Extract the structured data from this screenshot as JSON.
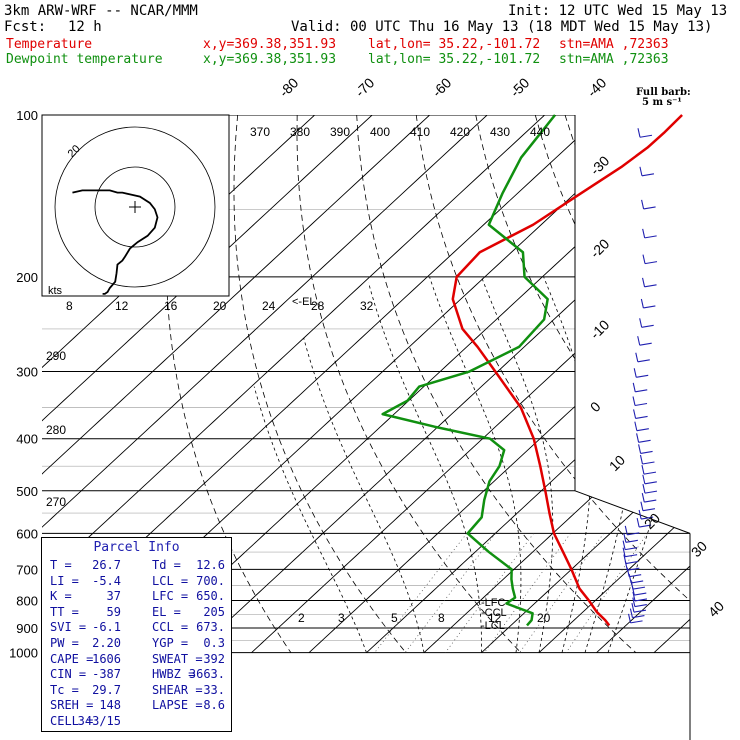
{
  "header": {
    "model": "3km ARW-WRF -- NCAR/MMM",
    "init": "Init: 12 UTC Wed 15 May 13",
    "fcst_label": "Fcst:",
    "fcst_value": "12 h",
    "valid": "Valid: 00 UTC Thu 16 May 13 (18 MDT Wed 15 May 13)",
    "temp_line": {
      "name": "Temperature",
      "xy": "x,y=369.38,351.93",
      "latlon": "lat,lon= 35.22,-101.72",
      "stn": "stn=AMA ,72363"
    },
    "dew_line": {
      "name": "Dewpoint temperature",
      "xy": "x,y=369.38,351.93",
      "latlon": "lat,lon= 35.22,-101.72",
      "stn": "stn=AMA ,72363"
    }
  },
  "colors": {
    "temperature": "#e00000",
    "dewpoint": "#109010",
    "wind_barbs": "#2020b0",
    "grid": "#000000"
  },
  "barb_legend": {
    "line1": "Full barb:",
    "line2": "5 m s⁻¹"
  },
  "parcel_info": {
    "title": "Parcel Info",
    "rows": [
      {
        "l1": "T",
        "v1": "26.7",
        "l2": "Td",
        "v2": "12.6"
      },
      {
        "l1": "LI",
        "v1": "-5.4",
        "l2": "LCL",
        "v2": "700."
      },
      {
        "l1": "K",
        "v1": "37",
        "l2": "LFC",
        "v2": "650."
      },
      {
        "l1": "TT",
        "v1": "59",
        "l2": "EL",
        "v2": "205"
      },
      {
        "l1": "SVI",
        "v1": "-6.1",
        "l2": "CCL",
        "v2": "673."
      },
      {
        "l1": "PW",
        "v1": "2.20",
        "l2": "YGP",
        "v2": "0.3"
      },
      {
        "l1": "CAPE",
        "v1": "1606",
        "l2": "SWEAT",
        "v2": "392"
      },
      {
        "l1": "CIN",
        "v1": "-387",
        "l2": "HWBZ",
        "v2": "3663."
      },
      {
        "l1": "Tc",
        "v1": "29.7",
        "l2": "SHEAR",
        "v2": "33."
      },
      {
        "l1": "SREH",
        "v1": "148",
        "l2": "LAPSE",
        "v2": "8.6"
      },
      {
        "l1": "CELL",
        "v1": "343/15",
        "l2": "",
        "v2": ""
      }
    ]
  },
  "level_markers": {
    "lfc": "-LFC",
    "lcl1": "-CCL",
    "lcl2": "-LCL",
    "el": "<-EL"
  },
  "hodograph": {
    "unit_label": "kts",
    "ring_label": "20",
    "speed_ticks": [
      "8",
      "12",
      "16",
      "20",
      "24",
      "28",
      "32"
    ]
  },
  "chart_data": {
    "type": "line",
    "title": "",
    "pressure_levels": [
      100,
      200,
      300,
      400,
      500,
      600,
      700,
      800,
      900,
      1000
    ],
    "isotherm_labels": [
      "-80",
      "-70",
      "-60",
      "-50",
      "-40",
      "-30",
      "-20",
      "-10",
      "0",
      "10",
      "20",
      "30",
      "40"
    ],
    "theta_labels": [
      "370",
      "380",
      "390",
      "400",
      "410",
      "420",
      "430",
      "440"
    ],
    "theta_low_labels": [
      "290",
      "280",
      "270"
    ],
    "mixing_ratio_labels": [
      "2",
      "3",
      "5",
      "8",
      "12",
      "20"
    ],
    "series": [
      {
        "name": "Temperature",
        "p": [
          890,
          870,
          840,
          800,
          760,
          700,
          650,
          600,
          550,
          500,
          450,
          400,
          350,
          300,
          270,
          250,
          220,
          200,
          180,
          160,
          140,
          125,
          115,
          108,
          100
        ],
        "t": [
          27.1,
          25.4,
          22.4,
          18.9,
          15.0,
          10.0,
          5.3,
          0.2,
          -4.4,
          -9.3,
          -14.8,
          -21.1,
          -29.2,
          -40.4,
          -48.1,
          -54.1,
          -61.4,
          -64.9,
          -65.5,
          -61.4,
          -59.0,
          -56.9,
          -56.0,
          -55.9,
          -56.1
        ]
      },
      {
        "name": "Dewpoint temperature",
        "p": [
          890,
          870,
          845,
          810,
          790,
          760,
          730,
          700,
          650,
          600,
          560,
          520,
          480,
          450,
          420,
          400,
          380,
          360,
          340,
          320,
          300,
          270,
          240,
          220,
          200,
          180,
          160,
          140,
          120,
          100
        ],
        "t": [
          12.8,
          12.6,
          11.5,
          5.1,
          5.5,
          3.4,
          1.4,
          -0.4,
          -7.6,
          -14.8,
          -15.4,
          -18.2,
          -20.8,
          -21.9,
          -24.1,
          -28.7,
          -40.6,
          -52.0,
          -50.2,
          -50.8,
          -44.9,
          -40.9,
          -41.7,
          -44.9,
          -53.1,
          -58.0,
          -69.1,
          -72.6,
          -76.1,
          -78.2
        ]
      }
    ],
    "hodograph_path_kts": [
      [
        -7.2,
        -19.3
      ],
      [
        -6.7,
        -19.3
      ],
      [
        -6.1,
        -18.9
      ],
      [
        -5.6,
        -18.0
      ],
      [
        -4.4,
        -16.6
      ],
      [
        -4.1,
        -14.7
      ],
      [
        -3.9,
        -12.8
      ],
      [
        -2.8,
        -11.9
      ],
      [
        -2.2,
        -11.0
      ],
      [
        -1.1,
        -9.2
      ],
      [
        0.6,
        -7.8
      ],
      [
        2.8,
        -6.4
      ],
      [
        4.4,
        -4.6
      ],
      [
        5.0,
        -2.3
      ],
      [
        4.4,
        -0.5
      ],
      [
        3.3,
        0.9
      ],
      [
        1.1,
        2.3
      ],
      [
        -1.1,
        2.8
      ],
      [
        -2.8,
        3.2
      ],
      [
        -3.9,
        3.2
      ],
      [
        -5.6,
        3.7
      ],
      [
        -6.7,
        3.7
      ],
      [
        -8.3,
        3.7
      ],
      [
        -10.6,
        3.7
      ],
      [
        -11.7,
        3.7
      ],
      [
        -13.9,
        3.2
      ]
    ],
    "storm_motion_kts": [
      0,
      0
    ],
    "wind_profile_barbs": 40,
    "legend_position": "top-right",
    "grid": true
  }
}
